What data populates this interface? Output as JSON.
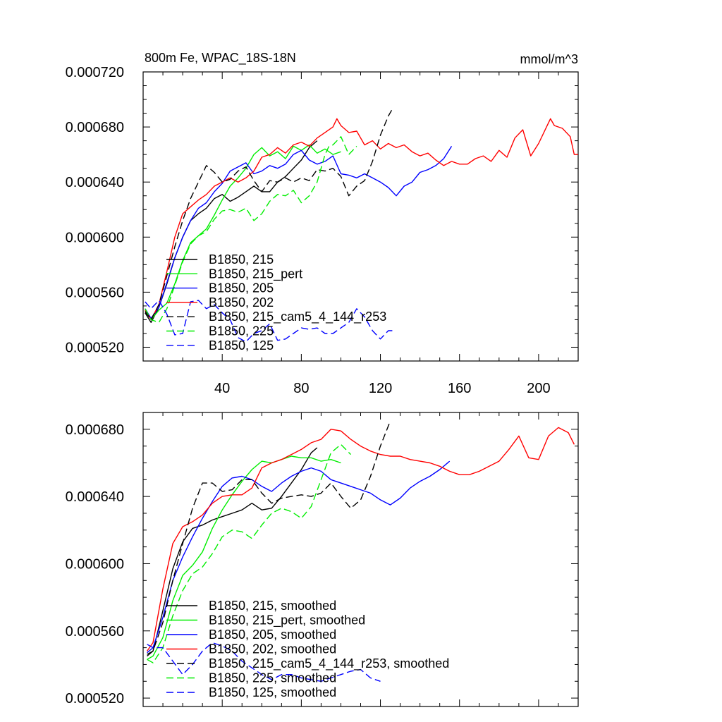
{
  "chart_data": [
    {
      "type": "line",
      "title": "800m Fe, WPAC_18S-18N",
      "units": "mmol/m^3",
      "xlim": [
        0,
        220
      ],
      "ylim": [
        0.00051,
        0.00072
      ],
      "x_ticks": [
        "40",
        "80",
        "120",
        "160",
        "200"
      ],
      "y_ticks": [
        "0.000720",
        "0.000680",
        "0.000640",
        "0.000600",
        "0.000560",
        "0.000520"
      ],
      "series": [
        {
          "name": "B1850, 215",
          "color": "#000000",
          "dash": "solid",
          "x": [
            1,
            4,
            8,
            12,
            16,
            20,
            24,
            28,
            32,
            36,
            40,
            44,
            48,
            52,
            56,
            60,
            64,
            68,
            72,
            76,
            80,
            84,
            88
          ],
          "values": [
            0.000545,
            0.000538,
            0.000549,
            0.000566,
            0.000585,
            0.0006,
            0.000612,
            0.000617,
            0.000621,
            0.000628,
            0.000631,
            0.000626,
            0.000629,
            0.000633,
            0.000637,
            0.000633,
            0.000633,
            0.00064,
            0.000644,
            0.00065,
            0.000656,
            0.000665,
            0.00067
          ]
        },
        {
          "name": "B1850, 215_pert",
          "color": "#00ee00",
          "dash": "solid",
          "x": [
            1,
            4,
            8,
            12,
            16,
            20,
            24,
            28,
            32,
            36,
            40,
            44,
            48,
            52,
            56,
            60,
            64,
            68,
            72,
            76,
            80,
            84,
            88,
            92,
            96,
            100
          ],
          "values": [
            0.000548,
            0.00054,
            0.000547,
            0.000552,
            0.000566,
            0.000583,
            0.000596,
            0.000601,
            0.000606,
            0.000616,
            0.000627,
            0.000637,
            0.000643,
            0.00065,
            0.00066,
            0.000665,
            0.000659,
            0.000662,
            0.000657,
            0.000666,
            0.000663,
            0.000667,
            0.000661,
            0.000664,
            0.00066,
            0.000662
          ]
        },
        {
          "name": "B1850, 205",
          "color": "#0000ff",
          "dash": "solid",
          "x": [
            1,
            4,
            8,
            12,
            16,
            20,
            24,
            28,
            32,
            36,
            40,
            44,
            48,
            52,
            56,
            60,
            64,
            68,
            72,
            76,
            80,
            84,
            88,
            92,
            96,
            100,
            104,
            108,
            112,
            116,
            120,
            124,
            128,
            132,
            136,
            140,
            144,
            148,
            152,
            156
          ],
          "values": [
            0.000548,
            0.000541,
            0.000549,
            0.000567,
            0.000585,
            0.0006,
            0.000612,
            0.000621,
            0.000625,
            0.000633,
            0.000639,
            0.000648,
            0.000651,
            0.000654,
            0.000646,
            0.000648,
            0.000652,
            0.00065,
            0.000653,
            0.00066,
            0.000663,
            0.000656,
            0.000653,
            0.000655,
            0.000659,
            0.000646,
            0.000645,
            0.000643,
            0.000646,
            0.000643,
            0.00064,
            0.000636,
            0.00063,
            0.000637,
            0.00064,
            0.000647,
            0.000649,
            0.000652,
            0.000657,
            0.000666
          ]
        },
        {
          "name": "B1850, 202",
          "color": "#ff0000",
          "dash": "solid",
          "x": [
            1,
            4,
            8,
            12,
            16,
            20,
            24,
            28,
            32,
            36,
            40,
            44,
            48,
            52,
            56,
            60,
            64,
            68,
            72,
            76,
            80,
            84,
            88,
            92,
            96,
            98,
            100,
            104,
            108,
            112,
            116,
            120,
            124,
            128,
            132,
            136,
            140,
            144,
            148,
            152,
            156,
            160,
            164,
            168,
            172,
            176,
            180,
            184,
            188,
            192,
            196,
            200,
            204,
            206,
            208,
            212,
            216,
            218,
            220
          ],
          "values": [
            0.000547,
            0.00054,
            0.000551,
            0.000575,
            0.0006,
            0.000617,
            0.000622,
            0.000627,
            0.000631,
            0.000637,
            0.00064,
            0.000643,
            0.00064,
            0.000643,
            0.000648,
            0.000658,
            0.00066,
            0.000665,
            0.000661,
            0.000667,
            0.000669,
            0.000666,
            0.000672,
            0.000676,
            0.00068,
            0.000686,
            0.000681,
            0.000676,
            0.000677,
            0.000667,
            0.00067,
            0.000664,
            0.000668,
            0.000665,
            0.000667,
            0.000662,
            0.000659,
            0.000661,
            0.000656,
            0.000652,
            0.000655,
            0.000653,
            0.000653,
            0.000657,
            0.000659,
            0.000655,
            0.000663,
            0.000658,
            0.000672,
            0.000678,
            0.000659,
            0.000668,
            0.00068,
            0.000686,
            0.000681,
            0.000679,
            0.000673,
            0.00066,
            0.00066
          ]
        },
        {
          "name": "B1850, 215_cam5_4_144_r253",
          "color": "#000000",
          "dash": "dashed",
          "x": [
            1,
            4,
            8,
            12,
            16,
            20,
            24,
            28,
            30,
            32,
            36,
            40,
            44,
            48,
            52,
            56,
            60,
            64,
            68,
            72,
            76,
            80,
            84,
            88,
            92,
            96,
            100,
            104,
            108,
            112,
            116,
            120,
            124,
            126
          ],
          "values": [
            0.000546,
            0.00054,
            0.000551,
            0.000572,
            0.000593,
            0.000612,
            0.000628,
            0.00064,
            0.000646,
            0.000652,
            0.000647,
            0.00064,
            0.000642,
            0.000648,
            0.000651,
            0.000641,
            0.000633,
            0.000641,
            0.00064,
            0.000643,
            0.00064,
            0.000643,
            0.000641,
            0.000649,
            0.000648,
            0.00065,
            0.000644,
            0.00063,
            0.000637,
            0.000641,
            0.000655,
            0.000674,
            0.000688,
            0.000693
          ]
        },
        {
          "name": "B1850, 225",
          "color": "#00ee00",
          "dash": "dashed",
          "x": [
            1,
            4,
            8,
            12,
            16,
            20,
            24,
            28,
            32,
            36,
            40,
            44,
            48,
            52,
            56,
            60,
            64,
            68,
            72,
            76,
            80,
            84,
            88,
            92,
            94,
            96,
            100,
            104,
            108
          ],
          "values": [
            0.000548,
            0.00054,
            0.000538,
            0.000548,
            0.000565,
            0.000582,
            0.000595,
            0.000601,
            0.000604,
            0.000613,
            0.000619,
            0.00062,
            0.000618,
            0.000621,
            0.000612,
            0.000617,
            0.000626,
            0.000631,
            0.00063,
            0.000634,
            0.000625,
            0.00063,
            0.00064,
            0.00066,
            0.000666,
            0.000667,
            0.000673,
            0.00066,
            0.000666
          ]
        },
        {
          "name": "B1850, 125",
          "color": "#0000ff",
          "dash": "dashed",
          "x": [
            1,
            4,
            8,
            12,
            16,
            20,
            24,
            28,
            32,
            36,
            40,
            44,
            48,
            52,
            56,
            60,
            64,
            68,
            72,
            76,
            80,
            84,
            88,
            92,
            96,
            100,
            104,
            108,
            112,
            116,
            120,
            124,
            126
          ],
          "values": [
            0.000553,
            0.000548,
            0.000554,
            0.000544,
            0.000529,
            0.00053,
            0.000553,
            0.000554,
            0.000548,
            0.000551,
            0.000545,
            0.00054,
            0.000527,
            0.000524,
            0.00053,
            0.000532,
            0.000537,
            0.000525,
            0.000526,
            0.00053,
            0.000534,
            0.000533,
            0.000534,
            0.00053,
            0.00053,
            0.000534,
            0.000538,
            0.000548,
            0.000542,
            0.000532,
            0.000526,
            0.000532,
            0.000532
          ]
        }
      ]
    },
    {
      "type": "line",
      "title": "",
      "xlim": [
        0,
        220
      ],
      "ylim": [
        0.000515,
        0.00069
      ],
      "y_ticks": [
        "0.000680",
        "0.000640",
        "0.000600",
        "0.000560",
        "0.000520"
      ],
      "series": [
        {
          "name": "B1850, 215, smoothed",
          "color": "#000000",
          "dash": "solid",
          "x": [
            2,
            5,
            10,
            15,
            20,
            25,
            30,
            35,
            40,
            45,
            50,
            55,
            60,
            65,
            70,
            75,
            80,
            85,
            88
          ],
          "values": [
            0.000545,
            0.000548,
            0.000572,
            0.000597,
            0.000613,
            0.000621,
            0.000623,
            0.000626,
            0.000628,
            0.00063,
            0.000632,
            0.000636,
            0.000632,
            0.000633,
            0.00064,
            0.000648,
            0.000656,
            0.000666,
            0.000669
          ]
        },
        {
          "name": "B1850, 215_pert, smoothed",
          "color": "#00ee00",
          "dash": "solid",
          "x": [
            2,
            5,
            10,
            15,
            20,
            25,
            30,
            35,
            40,
            45,
            50,
            55,
            60,
            65,
            70,
            75,
            80,
            85,
            90,
            95,
            100
          ],
          "values": [
            0.000543,
            0.000545,
            0.000556,
            0.000578,
            0.000593,
            0.000599,
            0.000607,
            0.000621,
            0.000632,
            0.000641,
            0.000649,
            0.000656,
            0.000661,
            0.00066,
            0.000662,
            0.000664,
            0.000663,
            0.000663,
            0.000661,
            0.000662,
            0.00066
          ]
        },
        {
          "name": "B1850, 205, smoothed",
          "color": "#0000ff",
          "dash": "solid",
          "x": [
            2,
            5,
            10,
            15,
            20,
            25,
            30,
            35,
            40,
            45,
            50,
            55,
            60,
            65,
            70,
            75,
            80,
            85,
            90,
            95,
            100,
            105,
            110,
            115,
            120,
            125,
            130,
            135,
            140,
            145,
            150,
            155
          ],
          "values": [
            0.000547,
            0.00055,
            0.000568,
            0.00059,
            0.000604,
            0.000616,
            0.000627,
            0.000637,
            0.000646,
            0.000651,
            0.000652,
            0.00065,
            0.000646,
            0.000643,
            0.000648,
            0.000652,
            0.000655,
            0.000657,
            0.000655,
            0.00065,
            0.000648,
            0.000646,
            0.000644,
            0.000642,
            0.000638,
            0.000635,
            0.000639,
            0.000645,
            0.000649,
            0.000652,
            0.000656,
            0.000661
          ]
        },
        {
          "name": "B1850, 202, smoothed",
          "color": "#ff0000",
          "dash": "solid",
          "x": [
            2,
            5,
            10,
            15,
            20,
            25,
            30,
            35,
            40,
            45,
            50,
            55,
            60,
            65,
            70,
            75,
            80,
            85,
            90,
            95,
            100,
            105,
            110,
            115,
            120,
            125,
            130,
            135,
            140,
            145,
            150,
            155,
            160,
            165,
            170,
            175,
            180,
            185,
            190,
            195,
            200,
            205,
            210,
            215,
            218
          ],
          "values": [
            0.000548,
            0.000553,
            0.000585,
            0.000612,
            0.000622,
            0.000625,
            0.000629,
            0.000636,
            0.00064,
            0.000641,
            0.000641,
            0.000645,
            0.000657,
            0.00066,
            0.000662,
            0.000665,
            0.000668,
            0.000672,
            0.000674,
            0.00068,
            0.000679,
            0.000674,
            0.00067,
            0.000667,
            0.000665,
            0.000664,
            0.000664,
            0.000662,
            0.000661,
            0.00066,
            0.000658,
            0.000655,
            0.000653,
            0.000653,
            0.000655,
            0.000658,
            0.000661,
            0.000668,
            0.000676,
            0.000663,
            0.000662,
            0.000676,
            0.000681,
            0.000678,
            0.000671
          ]
        },
        {
          "name": "B1850, 215_cam5_4_144_r253, smoothed",
          "color": "#000000",
          "dash": "dashed",
          "x": [
            2,
            5,
            10,
            15,
            20,
            25,
            30,
            35,
            40,
            45,
            50,
            55,
            60,
            65,
            70,
            75,
            80,
            85,
            90,
            95,
            100,
            105,
            110,
            115,
            120,
            125
          ],
          "values": [
            0.000546,
            0.000548,
            0.000565,
            0.00059,
            0.000612,
            0.000633,
            0.000648,
            0.000648,
            0.000643,
            0.000644,
            0.00065,
            0.00065,
            0.000642,
            0.000636,
            0.000639,
            0.00064,
            0.000641,
            0.00064,
            0.000642,
            0.000648,
            0.00064,
            0.000633,
            0.000638,
            0.000652,
            0.00067,
            0.000685
          ]
        },
        {
          "name": "B1850, 225, smoothed",
          "color": "#00ee00",
          "dash": "dashed",
          "x": [
            2,
            5,
            10,
            15,
            20,
            25,
            30,
            35,
            40,
            45,
            50,
            55,
            60,
            65,
            70,
            75,
            80,
            85,
            90,
            95,
            100,
            105
          ],
          "values": [
            0.000543,
            0.000541,
            0.00055,
            0.000569,
            0.000584,
            0.000594,
            0.000598,
            0.000606,
            0.000616,
            0.00062,
            0.000619,
            0.000615,
            0.000623,
            0.00063,
            0.000633,
            0.000631,
            0.000627,
            0.000634,
            0.00065,
            0.000666,
            0.000671,
            0.000665
          ]
        },
        {
          "name": "B1850, 125, smoothed",
          "color": "#0000ff",
          "dash": "dashed",
          "x": [
            2,
            5,
            10,
            15,
            20,
            25,
            30,
            35,
            40,
            45,
            50,
            55,
            60,
            65,
            70,
            75,
            80,
            85,
            90,
            95,
            100,
            105,
            110,
            115,
            120
          ],
          "values": [
            0.000552,
            0.00055,
            0.00055,
            0.000542,
            0.000534,
            0.00054,
            0.000548,
            0.000553,
            0.000551,
            0.000548,
            0.000542,
            0.000538,
            0.000534,
            0.000531,
            0.000534,
            0.000534,
            0.000532,
            0.000531,
            0.00053,
            0.000532,
            0.000534,
            0.000536,
            0.000537,
            0.000532,
            0.00053
          ]
        }
      ]
    }
  ]
}
